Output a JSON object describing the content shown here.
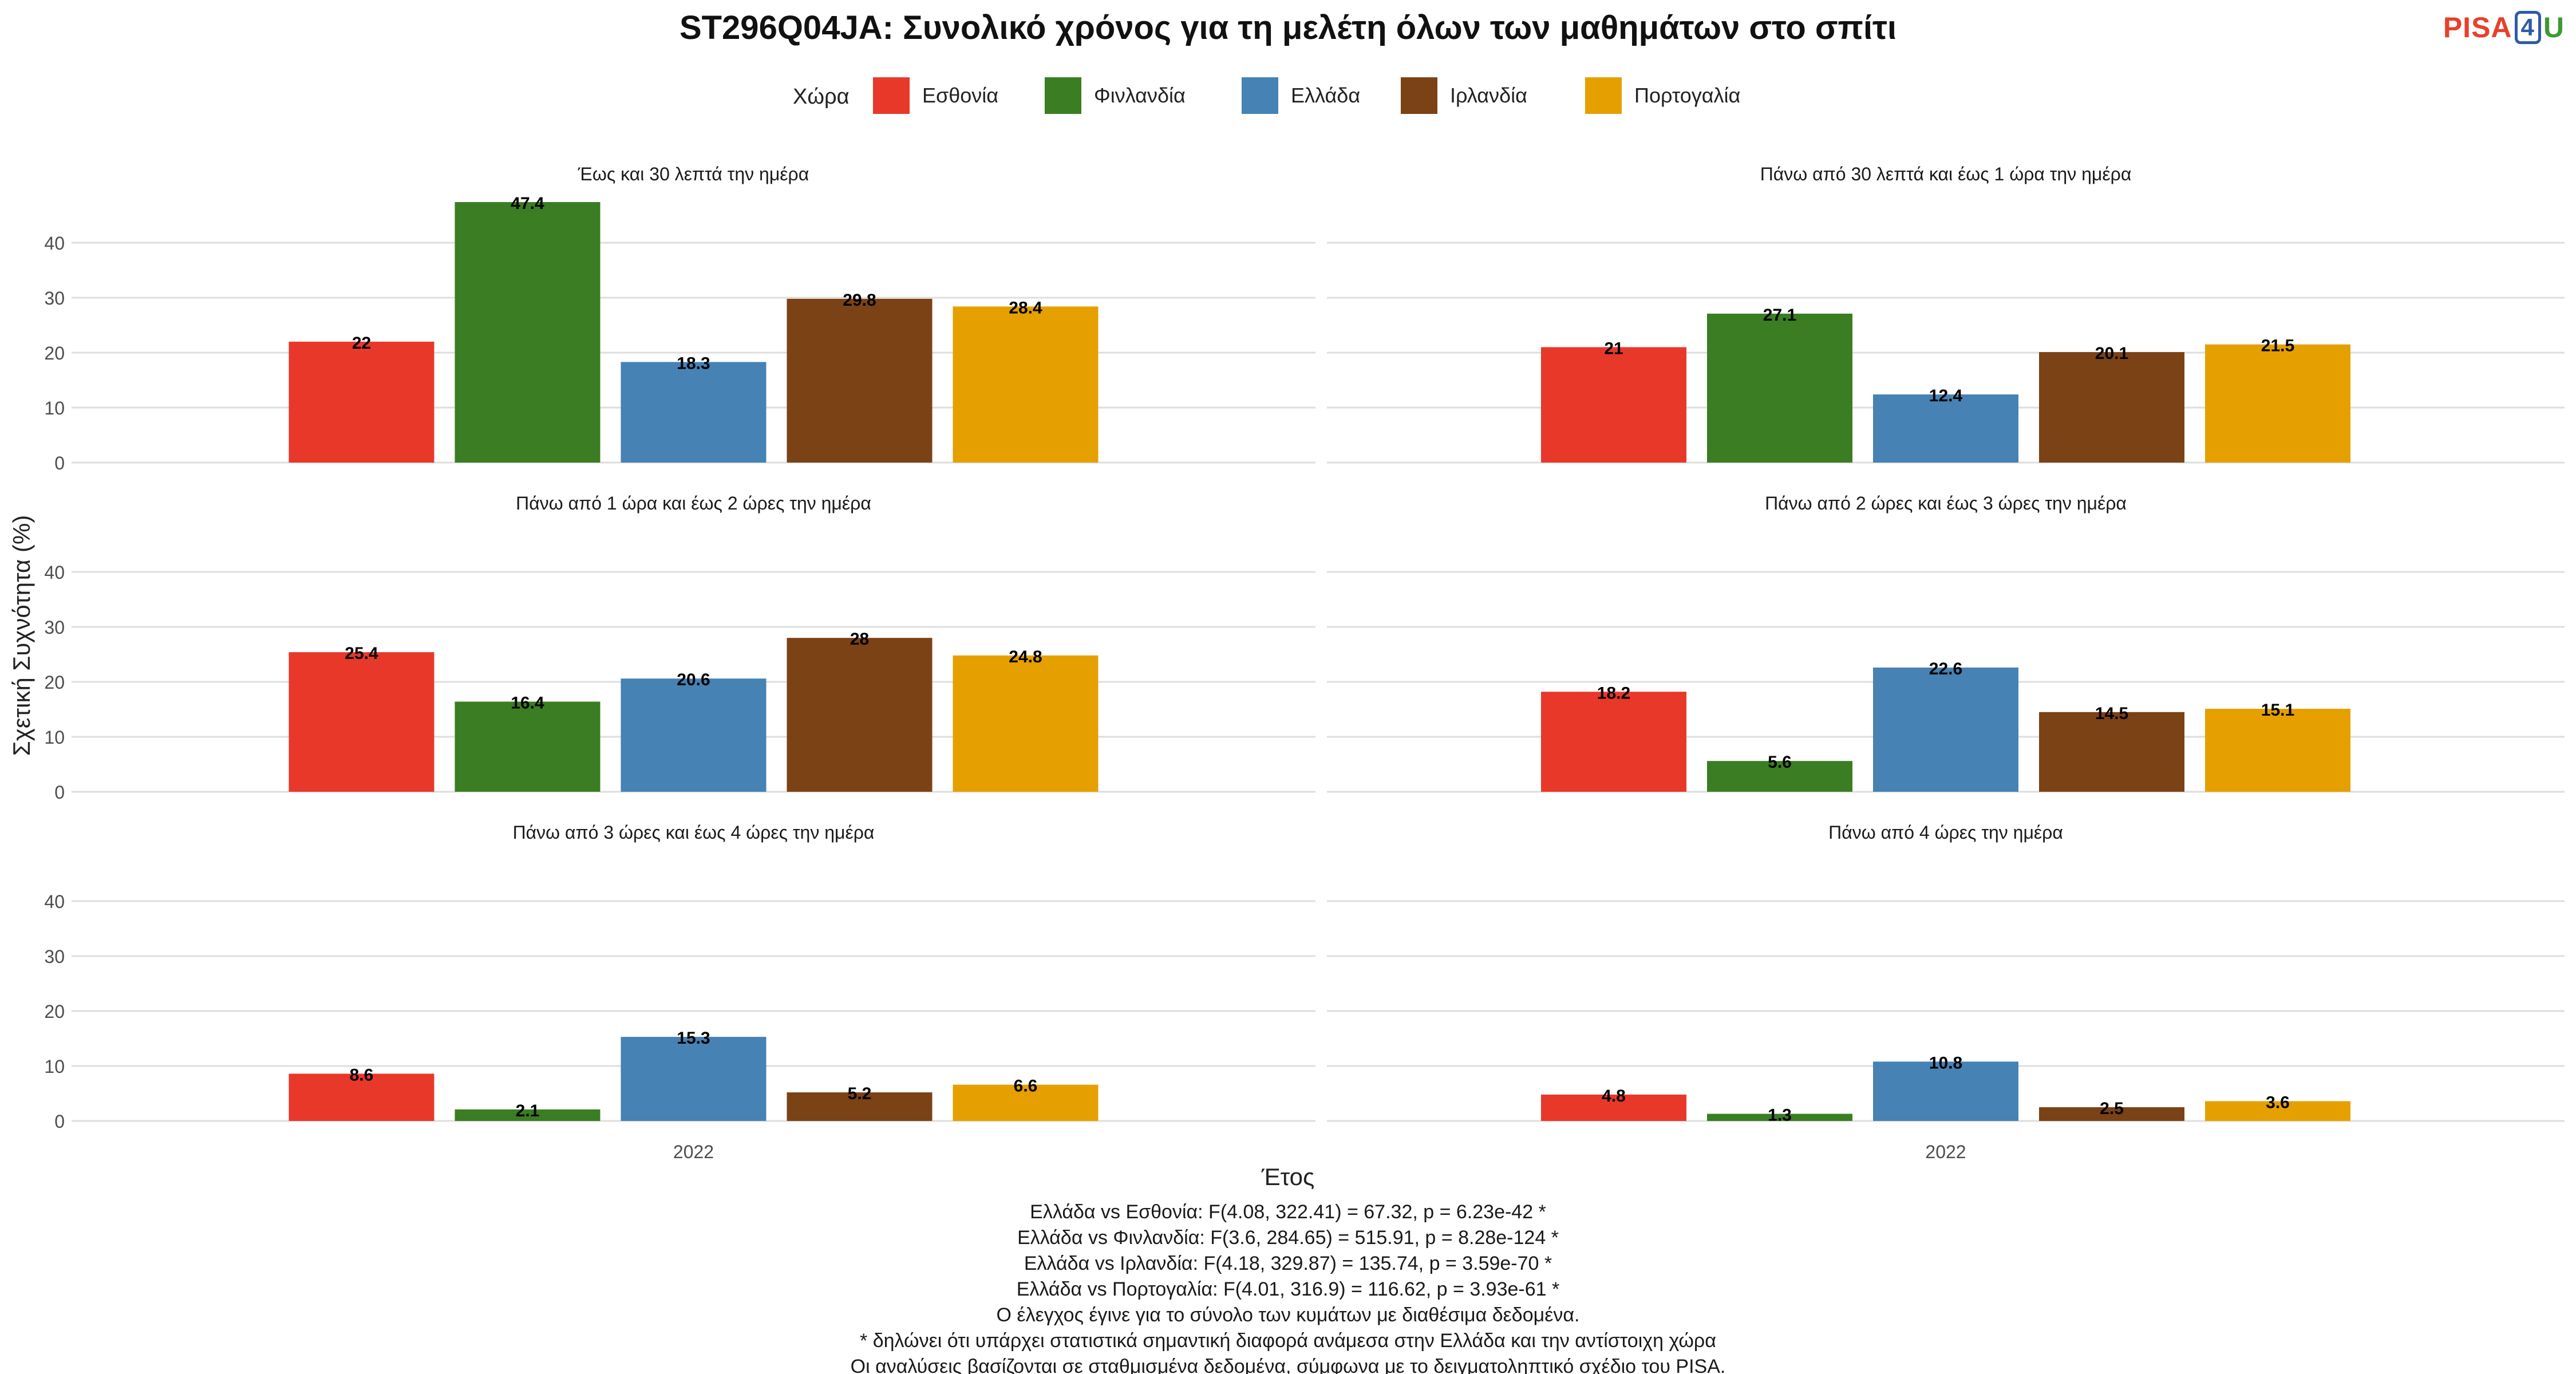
{
  "chart_data": {
    "type": "bar",
    "title": "ST296Q04JA: Συνολικό χρόνος για τη μελέτη όλων των μαθημάτων στο σπίτι",
    "xlabel": "Έτος",
    "ylabel": "Σχετική Συχνότητα (%)",
    "ylim": [
      0,
      50
    ],
    "yticks": [
      0,
      10,
      20,
      30,
      40
    ],
    "grid": true,
    "legend": {
      "title": "Χώρα",
      "placement": "top"
    },
    "x_tick": "2022",
    "series": [
      {
        "name": "Εσθονία",
        "color": "#e8382a"
      },
      {
        "name": "Φινλανδία",
        "color": "#3a7d22"
      },
      {
        "name": "Ελλάδα",
        "color": "#4682b4"
      },
      {
        "name": "Ιρλανδία",
        "color": "#7b4216"
      },
      {
        "name": "Πορτογαλία",
        "color": "#e5a000"
      }
    ],
    "panels": [
      {
        "label": "Έως και 30 λεπτά την ημέρα",
        "values": [
          22,
          47.4,
          18.3,
          29.8,
          28.4
        ]
      },
      {
        "label": "Πάνω από 30 λεπτά και έως 1 ώρα την ημέρα",
        "values": [
          21,
          27.1,
          12.4,
          20.1,
          21.5
        ]
      },
      {
        "label": "Πάνω από 1 ώρα και έως 2 ώρες την ημέρα",
        "values": [
          25.4,
          16.4,
          20.6,
          28,
          24.8
        ]
      },
      {
        "label": "Πάνω από 2 ώρες και έως 3 ώρες την ημέρα",
        "values": [
          18.2,
          5.6,
          22.6,
          14.5,
          15.1
        ]
      },
      {
        "label": "Πάνω από 3 ώρες και έως 4 ώρες την ημέρα",
        "values": [
          8.6,
          2.1,
          15.3,
          5.2,
          6.6
        ]
      },
      {
        "label": "Πάνω από 4 ώρες την ημέρα",
        "values": [
          4.8,
          1.3,
          10.8,
          2.5,
          3.6
        ]
      }
    ]
  },
  "notes": [
    "Ελλάδα vs Εσθονία: F(4.08, 322.41) = 67.32, p = 6.23e-42 *",
    "Ελλάδα vs Φινλανδία: F(3.6, 284.65) = 515.91, p = 8.28e-124 *",
    "Ελλάδα vs Ιρλανδία: F(4.18, 329.87) = 135.74, p = 3.59e-70 *",
    "Ελλάδα vs Πορτογαλία: F(4.01, 316.9) = 116.62, p = 3.93e-61 *",
    "Ο έλεγχος έγινε για το σύνολο των κυμάτων με διαθέσιμα δεδομένα.",
    "* δηλώνει ότι υπάρχει στατιστικά σημαντική διαφορά ανάμεσα στην Ελλάδα και την αντίστοιχη χώρα",
    "Οι αναλύσεις βασίζονται σε σταθμισμένα δεδομένα, σύμφωνα με το δειγματοληπτικό σχέδιο του PISA."
  ],
  "logo": {
    "part1": "PISA",
    "part2": "4",
    "part3": "U"
  }
}
